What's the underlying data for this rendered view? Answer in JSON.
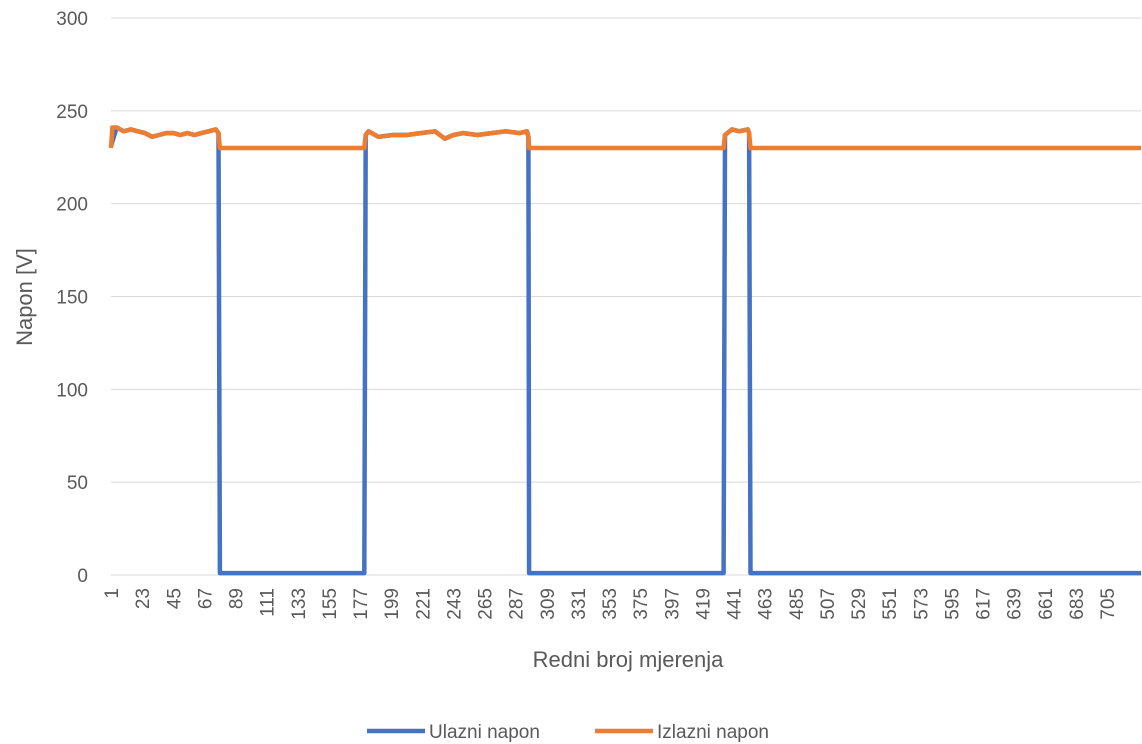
{
  "chart_data": {
    "type": "line",
    "title": "",
    "xlabel": "Redni broj mjerenja",
    "ylabel": "Napon [V]",
    "ylim": [
      0,
      300
    ],
    "yticks": [
      "0",
      "50",
      "100",
      "150",
      "200",
      "250",
      "300"
    ],
    "xlim": [
      1,
      729
    ],
    "xticks": [
      "1",
      "23",
      "45",
      "67",
      "89",
      "111",
      "133",
      "155",
      "177",
      "199",
      "221",
      "243",
      "265",
      "287",
      "309",
      "331",
      "353",
      "375",
      "397",
      "419",
      "441",
      "463",
      "485",
      "507",
      "529",
      "551",
      "573",
      "595",
      "617",
      "639",
      "661",
      "683",
      "705"
    ],
    "grid": true,
    "legend_position": "bottom",
    "colors": {
      "input": "#4472C4",
      "output": "#ED7D31"
    },
    "series": [
      {
        "name": "Ulazni napon",
        "x": [
          1,
          5,
          10,
          15,
          20,
          25,
          30,
          35,
          40,
          45,
          50,
          55,
          60,
          65,
          70,
          75,
          77,
          78,
          180,
          181,
          183,
          190,
          200,
          210,
          220,
          230,
          237,
          243,
          250,
          260,
          270,
          280,
          290,
          295,
          296,
          296.5,
          434,
          435,
          440,
          445,
          451,
          452,
          453,
          729
        ],
        "y": [
          231,
          241,
          239,
          240,
          239,
          238,
          236,
          237,
          238,
          238,
          237,
          238,
          237,
          238,
          239,
          240,
          238,
          1,
          1,
          237,
          239,
          236,
          237,
          237,
          238,
          239,
          235,
          237,
          238,
          237,
          238,
          239,
          238,
          239,
          236,
          1,
          1,
          237,
          240,
          239,
          240,
          238,
          1,
          1
        ]
      },
      {
        "name": "Izlazni napon",
        "x": [
          1,
          2,
          5,
          10,
          15,
          20,
          25,
          30,
          35,
          40,
          45,
          50,
          55,
          60,
          65,
          70,
          75,
          77,
          78,
          180,
          181,
          183,
          190,
          200,
          210,
          220,
          230,
          237,
          243,
          250,
          260,
          270,
          280,
          290,
          295,
          296,
          296.5,
          434,
          435,
          440,
          445,
          451,
          452,
          453,
          729
        ],
        "y": [
          230,
          241,
          241,
          239,
          240,
          239,
          238,
          236,
          237,
          238,
          238,
          237,
          238,
          237,
          238,
          239,
          240,
          238,
          230,
          230,
          237,
          239,
          236,
          237,
          237,
          238,
          239,
          235,
          237,
          238,
          237,
          238,
          239,
          238,
          239,
          236,
          230,
          230,
          237,
          240,
          239,
          240,
          238,
          230,
          230
        ]
      }
    ]
  }
}
